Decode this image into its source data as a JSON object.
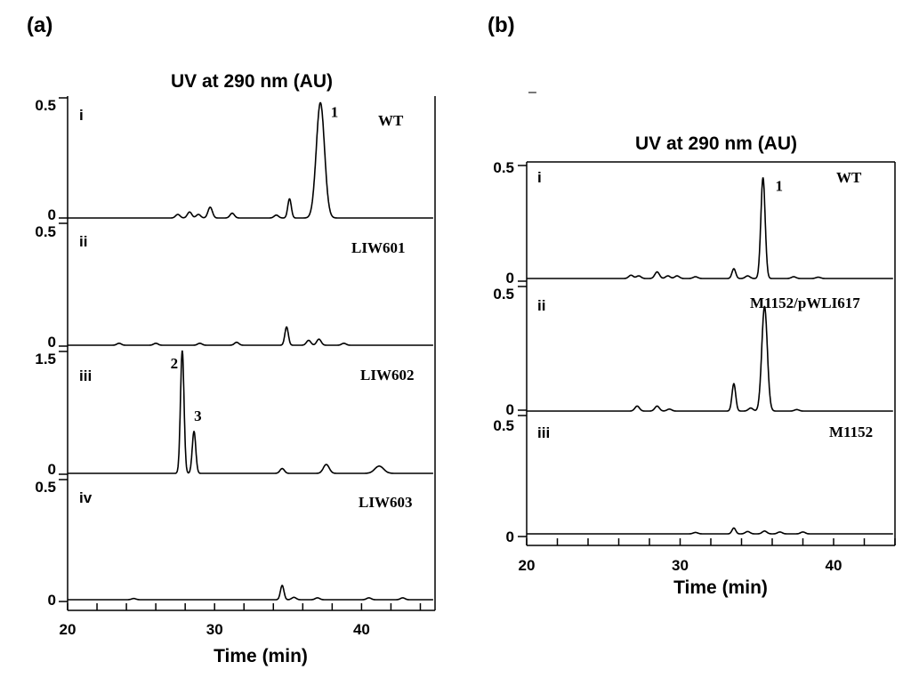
{
  "panels": [
    {
      "label": "(a)",
      "chart_data": {
        "type": "line",
        "title": "UV at  290 nm (AU)",
        "xlabel": "Time (min)",
        "xlim": [
          20,
          45
        ],
        "xticks": [
          20,
          30,
          40
        ],
        "xtick_labels": [
          "20",
          "30",
          "40"
        ],
        "traces": [
          {
            "roman": "i",
            "name": "WT",
            "ymax": 0.5,
            "ytop_label": "0.5",
            "ybottom_label": "0",
            "peaks": [
              {
                "x": 27.5,
                "y": 0.015,
                "w": 0.15
              },
              {
                "x": 28.3,
                "y": 0.025,
                "w": 0.15
              },
              {
                "x": 28.9,
                "y": 0.015,
                "w": 0.15
              },
              {
                "x": 29.7,
                "y": 0.045,
                "w": 0.15
              },
              {
                "x": 31.2,
                "y": 0.02,
                "w": 0.15
              },
              {
                "x": 34.2,
                "y": 0.012,
                "w": 0.15
              },
              {
                "x": 35.1,
                "y": 0.08,
                "w": 0.12
              },
              {
                "x": 37.2,
                "y": 0.48,
                "w": 0.28
              }
            ],
            "peak_labels": [
              {
                "text": "1",
                "x": 37.9,
                "y": 0.42
              }
            ]
          },
          {
            "roman": "ii",
            "name": "LIW601",
            "ymax": 0.5,
            "ytop_label": "0.5",
            "ybottom_label": "0",
            "peaks": [
              {
                "x": 23.5,
                "y": 0.008,
                "w": 0.15
              },
              {
                "x": 26.0,
                "y": 0.008,
                "w": 0.15
              },
              {
                "x": 29.0,
                "y": 0.008,
                "w": 0.15
              },
              {
                "x": 31.5,
                "y": 0.012,
                "w": 0.15
              },
              {
                "x": 34.9,
                "y": 0.075,
                "w": 0.12
              },
              {
                "x": 36.4,
                "y": 0.02,
                "w": 0.15
              },
              {
                "x": 37.1,
                "y": 0.025,
                "w": 0.15
              },
              {
                "x": 38.8,
                "y": 0.008,
                "w": 0.15
              }
            ],
            "peak_labels": []
          },
          {
            "roman": "iii",
            "name": "LIW602",
            "ymax": 1.5,
            "ytop_label": "1.5",
            "ybottom_label": "0",
            "peaks": [
              {
                "x": 27.8,
                "y": 1.52,
                "w": 0.12
              },
              {
                "x": 28.6,
                "y": 0.52,
                "w": 0.12
              },
              {
                "x": 34.6,
                "y": 0.06,
                "w": 0.15
              },
              {
                "x": 37.6,
                "y": 0.11,
                "w": 0.2
              },
              {
                "x": 41.2,
                "y": 0.09,
                "w": 0.3
              }
            ],
            "peak_labels": [
              {
                "text": "2",
                "x": 27.0,
                "y": 1.3
              },
              {
                "text": "3",
                "x": 28.6,
                "y": 0.65
              }
            ]
          },
          {
            "roman": "iv",
            "name": "LIW603",
            "ymax": 0.5,
            "ytop_label": "0.5",
            "ybottom_label": "0",
            "peaks": [
              {
                "x": 24.5,
                "y": 0.005,
                "w": 0.15
              },
              {
                "x": 34.6,
                "y": 0.06,
                "w": 0.12
              },
              {
                "x": 35.4,
                "y": 0.01,
                "w": 0.15
              },
              {
                "x": 37.0,
                "y": 0.008,
                "w": 0.15
              },
              {
                "x": 40.5,
                "y": 0.008,
                "w": 0.15
              },
              {
                "x": 42.8,
                "y": 0.008,
                "w": 0.15
              }
            ],
            "peak_labels": []
          }
        ]
      }
    },
    {
      "label": "(b)",
      "chart_data": {
        "type": "line",
        "title": "UV at  290 nm (AU)",
        "xlabel": "Time (min)",
        "xlim": [
          20,
          44
        ],
        "xticks": [
          20,
          30,
          40
        ],
        "xtick_labels": [
          "20",
          "30",
          "40"
        ],
        "traces": [
          {
            "roman": "i",
            "name": "WT",
            "ymax": 0.5,
            "ytop_label": "0.5",
            "ybottom_label": "0",
            "peaks": [
              {
                "x": 26.8,
                "y": 0.015,
                "w": 0.15
              },
              {
                "x": 27.3,
                "y": 0.012,
                "w": 0.15
              },
              {
                "x": 28.5,
                "y": 0.03,
                "w": 0.15
              },
              {
                "x": 29.2,
                "y": 0.012,
                "w": 0.15
              },
              {
                "x": 29.8,
                "y": 0.012,
                "w": 0.15
              },
              {
                "x": 31.0,
                "y": 0.008,
                "w": 0.15
              },
              {
                "x": 33.5,
                "y": 0.045,
                "w": 0.12
              },
              {
                "x": 34.4,
                "y": 0.012,
                "w": 0.15
              },
              {
                "x": 35.4,
                "y": 0.46,
                "w": 0.14
              },
              {
                "x": 37.4,
                "y": 0.008,
                "w": 0.15
              },
              {
                "x": 39.0,
                "y": 0.006,
                "w": 0.15
              }
            ],
            "peak_labels": [
              {
                "text": "1",
                "x": 36.2,
                "y": 0.4
              }
            ]
          },
          {
            "roman": "ii",
            "name": "M1152/pWLI617",
            "ymax": 0.5,
            "ytop_label": "0.5",
            "ybottom_label": "0",
            "peaks": [
              {
                "x": 27.2,
                "y": 0.02,
                "w": 0.15
              },
              {
                "x": 28.5,
                "y": 0.02,
                "w": 0.15
              },
              {
                "x": 29.3,
                "y": 0.008,
                "w": 0.15
              },
              {
                "x": 33.5,
                "y": 0.11,
                "w": 0.12
              },
              {
                "x": 34.6,
                "y": 0.012,
                "w": 0.15
              },
              {
                "x": 35.5,
                "y": 0.42,
                "w": 0.18
              },
              {
                "x": 37.6,
                "y": 0.006,
                "w": 0.15
              }
            ],
            "peak_labels": []
          },
          {
            "roman": "iii",
            "name": "M1152",
            "ymax": 0.5,
            "ytop_label": "0.5",
            "ybottom_label": "0",
            "peaks": [
              {
                "x": 31.0,
                "y": 0.006,
                "w": 0.15
              },
              {
                "x": 33.5,
                "y": 0.025,
                "w": 0.12
              },
              {
                "x": 34.4,
                "y": 0.01,
                "w": 0.15
              },
              {
                "x": 35.5,
                "y": 0.012,
                "w": 0.15
              },
              {
                "x": 36.5,
                "y": 0.008,
                "w": 0.15
              },
              {
                "x": 38.0,
                "y": 0.008,
                "w": 0.15
              }
            ],
            "peak_labels": []
          }
        ]
      }
    }
  ],
  "stray_mark": "–"
}
